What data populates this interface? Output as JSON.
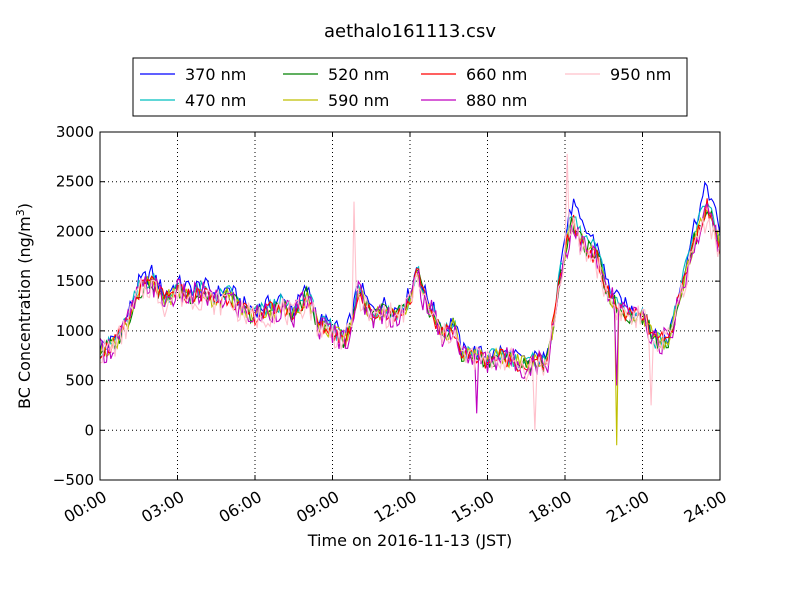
{
  "chart_data": {
    "type": "line",
    "title": "aethalo161113.csv",
    "xlabel": "Time on 2016-11-13 (JST)",
    "ylabel_main": "BC Concentration (ng/m",
    "ylabel_sup": "3",
    "ylabel_close": ")",
    "xlim": [
      "00:00",
      "24:00"
    ],
    "ylim": [
      -500,
      3000
    ],
    "grid": true,
    "legend_position": "top, above plot",
    "x_ticks": [
      "00:00",
      "03:00",
      "06:00",
      "09:00",
      "12:00",
      "15:00",
      "18:00",
      "21:00",
      "24:00"
    ],
    "y_ticks": [
      "−500",
      "0",
      "500",
      "1000",
      "1500",
      "2000",
      "2500",
      "3000"
    ],
    "series": [
      {
        "name": "370 nm",
        "color": "#0000ff",
        "profile": "370"
      },
      {
        "name": "470 nm",
        "color": "#00bfbf",
        "profile": "470"
      },
      {
        "name": "520 nm",
        "color": "#008000",
        "profile": "520"
      },
      {
        "name": "590 nm",
        "color": "#bfbf00",
        "profile": "590"
      },
      {
        "name": "660 nm",
        "color": "#ff0000",
        "profile": "660"
      },
      {
        "name": "880 nm",
        "color": "#bf00bf",
        "profile": "880"
      },
      {
        "name": "950 nm",
        "color": "#ffc0cb",
        "profile": "950"
      }
    ],
    "base_curve_hours_values": [
      [
        0.0,
        800
      ],
      [
        0.5,
        850
      ],
      [
        1.0,
        1050
      ],
      [
        1.5,
        1400
      ],
      [
        2.0,
        1500
      ],
      [
        2.5,
        1300
      ],
      [
        3.0,
        1400
      ],
      [
        3.5,
        1350
      ],
      [
        4.0,
        1380
      ],
      [
        4.5,
        1300
      ],
      [
        5.0,
        1350
      ],
      [
        5.5,
        1200
      ],
      [
        6.0,
        1150
      ],
      [
        6.5,
        1200
      ],
      [
        7.0,
        1250
      ],
      [
        7.5,
        1150
      ],
      [
        8.0,
        1350
      ],
      [
        8.5,
        1050
      ],
      [
        9.0,
        1000
      ],
      [
        9.5,
        900
      ],
      [
        9.8,
        1150
      ],
      [
        10.0,
        1400
      ],
      [
        10.3,
        1250
      ],
      [
        10.5,
        1150
      ],
      [
        11.0,
        1200
      ],
      [
        11.5,
        1150
      ],
      [
        12.0,
        1300
      ],
      [
        12.3,
        1600
      ],
      [
        12.5,
        1350
      ],
      [
        13.0,
        1100
      ],
      [
        13.3,
        950
      ],
      [
        13.7,
        1050
      ],
      [
        14.0,
        750
      ],
      [
        14.5,
        750
      ],
      [
        15.0,
        700
      ],
      [
        15.5,
        750
      ],
      [
        16.0,
        700
      ],
      [
        16.5,
        650
      ],
      [
        17.0,
        700
      ],
      [
        17.3,
        650
      ],
      [
        17.5,
        1000
      ],
      [
        17.8,
        1500
      ],
      [
        18.0,
        1800
      ],
      [
        18.3,
        2100
      ],
      [
        18.6,
        1900
      ],
      [
        19.0,
        1800
      ],
      [
        19.3,
        1700
      ],
      [
        19.6,
        1400
      ],
      [
        20.0,
        1250
      ],
      [
        20.5,
        1150
      ],
      [
        21.0,
        1150
      ],
      [
        21.5,
        900
      ],
      [
        22.0,
        900
      ],
      [
        22.5,
        1400
      ],
      [
        23.0,
        1900
      ],
      [
        23.5,
        2250
      ],
      [
        24.0,
        1850
      ]
    ],
    "series_scale": {
      "370": 1.14,
      "470": 1.06,
      "520": 1.0,
      "590": 1.0,
      "660": 1.0,
      "880": 0.98,
      "950": 0.95
    },
    "spikes": [
      {
        "series": "590",
        "x": 20.0,
        "y": -150
      },
      {
        "series": "880",
        "x": 20.0,
        "y": 450
      },
      {
        "series": "950",
        "x": 16.8,
        "y": 0
      },
      {
        "series": "950",
        "x": 21.3,
        "y": 250
      },
      {
        "series": "880",
        "x": 14.6,
        "y": 170
      },
      {
        "series": "950",
        "x": 9.8,
        "y": 2300
      },
      {
        "series": "950",
        "x": 18.1,
        "y": 2780
      }
    ]
  }
}
